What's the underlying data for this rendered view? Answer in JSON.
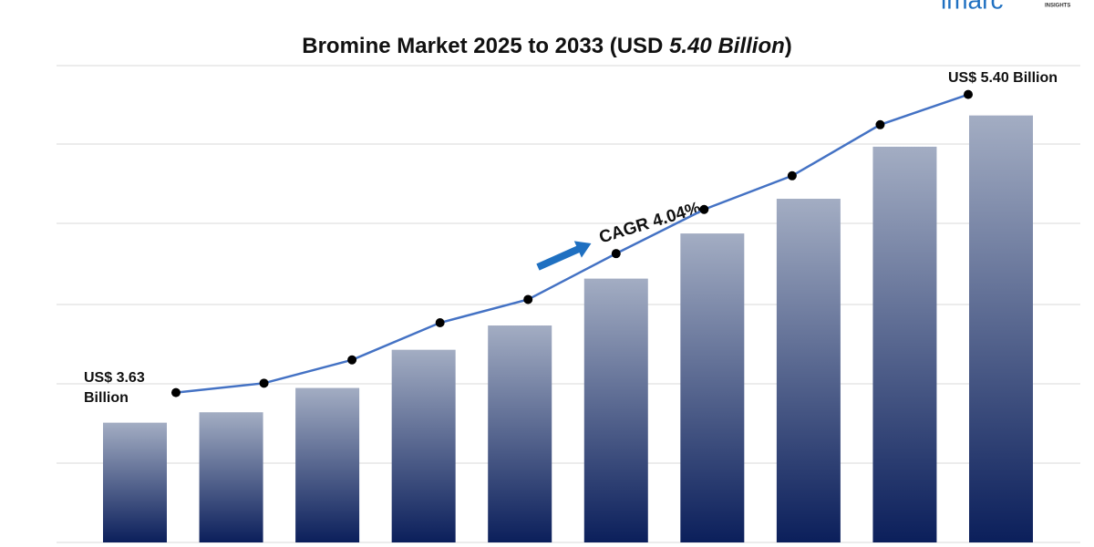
{
  "chart_data": {
    "type": "bar",
    "title_parts": [
      "Bromine Market 2025 to 2033 (USD ",
      "5.40 Billion",
      ")"
    ],
    "values": [
      3.63,
      3.69,
      3.83,
      4.05,
      4.19,
      4.46,
      4.72,
      4.92,
      5.22,
      5.4
    ],
    "value_labels": [
      "US$ 3.63 Billion",
      null,
      null,
      null,
      null,
      null,
      null,
      null,
      null,
      "US$ 5.40 Billion"
    ],
    "ylim": [
      2.94,
      5.75
    ],
    "bar_color_top": "#a3adc3",
    "bar_color_bottom": "#0b1f5b",
    "line_color": "#4472c4",
    "point_color": "#000000",
    "arrow_color": "#1f70c1",
    "annotation": "CAGR 4.04%"
  },
  "logo": {
    "text": "imarc",
    "subtext": "INSIGHTS"
  }
}
